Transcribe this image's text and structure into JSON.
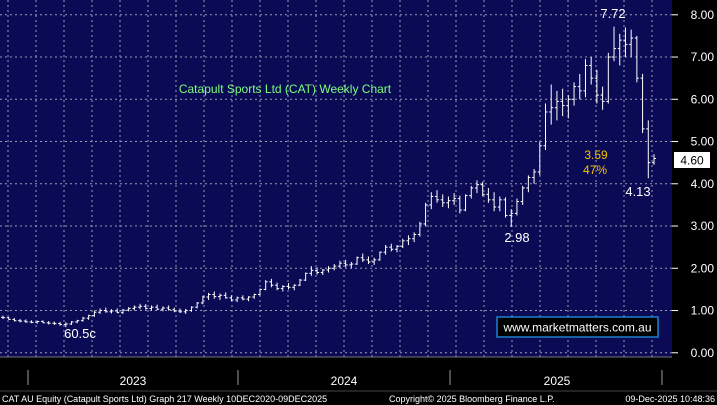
{
  "chart_data": {
    "type": "line",
    "style": "weekly bar (OHLC) chart",
    "title": "Catapult Sports Ltd (CAT) Weekly Chart",
    "xlabel": "",
    "ylabel": "",
    "ylim": [
      -0.1,
      8.35
    ],
    "yticks": [
      "0.00",
      "1.00",
      "2.00",
      "3.00",
      "4.00",
      "5.00",
      "6.00",
      "7.00",
      "8.00"
    ],
    "xticks": [
      "2023",
      "2024",
      "2025"
    ],
    "grid": true,
    "last_price": "4.60",
    "last_price_value": 4.6,
    "website": "www.marketmatters.com.au",
    "annotations": {
      "low_2022": {
        "text": "60.5c",
        "week": 11,
        "value": 0.605
      },
      "low_2024": {
        "text": "2.98",
        "week": 89,
        "value": 2.98
      },
      "high_2025": {
        "text": "7.72",
        "week": 106,
        "value": 7.72
      },
      "low_2025": {
        "text": "4.13",
        "week": 112,
        "value": 4.13
      },
      "bounce_price": {
        "text": "3.59",
        "color": "#f5c400"
      },
      "bounce_pct": {
        "text": "47%",
        "color": "#f5c400"
      }
    },
    "series": [
      {
        "week_start": 0,
        "bars": [
          [
            0.84,
            0.88,
            0.8,
            0.83
          ],
          [
            0.83,
            0.85,
            0.78,
            0.79
          ],
          [
            0.79,
            0.82,
            0.74,
            0.76
          ],
          [
            0.76,
            0.8,
            0.72,
            0.75
          ],
          [
            0.75,
            0.79,
            0.71,
            0.73
          ],
          [
            0.73,
            0.77,
            0.7,
            0.72
          ],
          [
            0.72,
            0.76,
            0.69,
            0.74
          ],
          [
            0.74,
            0.77,
            0.7,
            0.71
          ],
          [
            0.71,
            0.75,
            0.67,
            0.7
          ],
          [
            0.7,
            0.74,
            0.66,
            0.69
          ],
          [
            0.69,
            0.73,
            0.64,
            0.67
          ],
          [
            0.67,
            0.72,
            0.605,
            0.68
          ],
          [
            0.68,
            0.75,
            0.66,
            0.73
          ],
          [
            0.73,
            0.78,
            0.7,
            0.76
          ],
          [
            0.76,
            0.85,
            0.74,
            0.82
          ],
          [
            0.82,
            0.9,
            0.78,
            0.88
          ],
          [
            0.88,
            1.0,
            0.85,
            0.96
          ],
          [
            0.96,
            1.05,
            0.92,
            1.0
          ],
          [
            1.0,
            1.07,
            0.95,
            0.97
          ],
          [
            0.97,
            1.03,
            0.93,
            0.99
          ],
          [
            0.99,
            1.05,
            0.94,
            0.95
          ],
          [
            0.95,
            1.04,
            0.92,
            1.01
          ],
          [
            1.01,
            1.08,
            0.98,
            1.05
          ],
          [
            1.05,
            1.12,
            1.0,
            1.08
          ],
          [
            1.08,
            1.16,
            1.03,
            1.1
          ],
          [
            1.1,
            1.15,
            1.02,
            1.05
          ],
          [
            1.05,
            1.12,
            1.0,
            1.08
          ],
          [
            1.08,
            1.14,
            1.01,
            1.03
          ],
          [
            1.03,
            1.1,
            0.98,
            1.06
          ],
          [
            1.06,
            1.12,
            1.0,
            1.02
          ],
          [
            1.02,
            1.07,
            0.96,
            0.99
          ],
          [
            0.99,
            1.05,
            0.94,
            0.97
          ],
          [
            0.97,
            1.04,
            0.92,
            1.0
          ],
          [
            1.0,
            1.1,
            0.97,
            1.08
          ],
          [
            1.08,
            1.2,
            1.05,
            1.18
          ],
          [
            1.18,
            1.35,
            1.15,
            1.32
          ],
          [
            1.32,
            1.42,
            1.25,
            1.38
          ],
          [
            1.38,
            1.45,
            1.28,
            1.33
          ],
          [
            1.33,
            1.4,
            1.25,
            1.36
          ],
          [
            1.36,
            1.43,
            1.28,
            1.3
          ],
          [
            1.3,
            1.36,
            1.22,
            1.25
          ],
          [
            1.25,
            1.33,
            1.2,
            1.3
          ],
          [
            1.3,
            1.36,
            1.24,
            1.27
          ],
          [
            1.27,
            1.34,
            1.22,
            1.32
          ],
          [
            1.32,
            1.4,
            1.28,
            1.38
          ],
          [
            1.38,
            1.52,
            1.35,
            1.5
          ],
          [
            1.5,
            1.72,
            1.48,
            1.68
          ],
          [
            1.68,
            1.75,
            1.55,
            1.6
          ],
          [
            1.6,
            1.66,
            1.48,
            1.52
          ],
          [
            1.52,
            1.6,
            1.45,
            1.57
          ],
          [
            1.57,
            1.65,
            1.5,
            1.55
          ],
          [
            1.55,
            1.62,
            1.48,
            1.6
          ],
          [
            1.6,
            1.75,
            1.58,
            1.72
          ],
          [
            1.72,
            1.9,
            1.7,
            1.88
          ],
          [
            1.88,
            2.05,
            1.82,
            1.95
          ],
          [
            1.95,
            2.02,
            1.85,
            1.9
          ],
          [
            1.9,
            1.98,
            1.84,
            1.96
          ],
          [
            1.96,
            2.05,
            1.9,
            2.0
          ],
          [
            2.0,
            2.1,
            1.95,
            2.05
          ],
          [
            2.05,
            2.18,
            2.0,
            2.12
          ],
          [
            2.12,
            2.2,
            2.02,
            2.08
          ],
          [
            2.08,
            2.15,
            2.0,
            2.1
          ],
          [
            2.1,
            2.28,
            2.08,
            2.25
          ],
          [
            2.25,
            2.35,
            2.15,
            2.2
          ],
          [
            2.2,
            2.28,
            2.1,
            2.15
          ],
          [
            2.15,
            2.25,
            2.08,
            2.2
          ],
          [
            2.2,
            2.4,
            2.18,
            2.38
          ],
          [
            2.38,
            2.55,
            2.32,
            2.5
          ],
          [
            2.5,
            2.58,
            2.4,
            2.45
          ],
          [
            2.45,
            2.55,
            2.38,
            2.52
          ],
          [
            2.52,
            2.7,
            2.48,
            2.65
          ],
          [
            2.65,
            2.78,
            2.55,
            2.7
          ],
          [
            2.7,
            2.85,
            2.62,
            2.8
          ],
          [
            2.8,
            3.1,
            2.75,
            3.05
          ],
          [
            3.05,
            3.55,
            3.0,
            3.5
          ],
          [
            3.5,
            3.8,
            3.4,
            3.7
          ],
          [
            3.7,
            3.85,
            3.55,
            3.62
          ],
          [
            3.62,
            3.75,
            3.45,
            3.55
          ],
          [
            3.55,
            3.7,
            3.42,
            3.6
          ],
          [
            3.6,
            3.78,
            3.5,
            3.65
          ],
          [
            3.65,
            3.72,
            3.3,
            3.38
          ],
          [
            3.38,
            3.75,
            3.35,
            3.72
          ],
          [
            3.72,
            3.95,
            3.65,
            3.9
          ],
          [
            3.9,
            4.08,
            3.78,
            3.98
          ],
          [
            3.98,
            4.05,
            3.7,
            3.75
          ],
          [
            3.75,
            3.9,
            3.55,
            3.62
          ],
          [
            3.62,
            3.8,
            3.35,
            3.45
          ],
          [
            3.45,
            3.7,
            3.35,
            3.62
          ],
          [
            3.62,
            3.68,
            3.2,
            3.25
          ],
          [
            3.25,
            3.4,
            2.98,
            3.3
          ],
          [
            3.3,
            3.65,
            3.25,
            3.58
          ],
          [
            3.58,
            3.95,
            3.5,
            3.9
          ],
          [
            3.9,
            4.2,
            3.8,
            4.15
          ],
          [
            4.15,
            4.35,
            4.0,
            4.28
          ],
          [
            4.28,
            5.0,
            4.2,
            4.9
          ],
          [
            4.9,
            5.9,
            4.8,
            5.7
          ],
          [
            5.7,
            6.35,
            5.4,
            5.8
          ],
          [
            5.8,
            6.2,
            5.5,
            5.95
          ],
          [
            5.95,
            6.25,
            5.6,
            5.85
          ],
          [
            5.85,
            6.1,
            5.55,
            6.0
          ],
          [
            6.0,
            6.4,
            5.85,
            6.3
          ],
          [
            6.3,
            6.6,
            6.0,
            6.2
          ],
          [
            6.2,
            6.95,
            6.05,
            6.8
          ],
          [
            6.8,
            7.0,
            6.35,
            6.5
          ],
          [
            6.5,
            6.7,
            5.9,
            6.1
          ],
          [
            6.1,
            6.3,
            5.75,
            5.95
          ],
          [
            5.95,
            7.1,
            5.9,
            7.0
          ],
          [
            7.0,
            7.72,
            6.9,
            7.2
          ],
          [
            7.2,
            7.55,
            6.8,
            7.4
          ],
          [
            7.4,
            7.7,
            7.0,
            7.3
          ],
          [
            7.3,
            7.65,
            7.0,
            7.45
          ],
          [
            7.45,
            7.5,
            6.4,
            6.5
          ],
          [
            6.5,
            6.6,
            5.2,
            5.3
          ],
          [
            5.3,
            5.5,
            4.13,
            4.5
          ],
          [
            4.5,
            4.7,
            4.45,
            4.6
          ]
        ]
      }
    ]
  },
  "footer": {
    "left": "CAT AU Equity (Catapult Sports Ltd) Graph 217 Weekly 10DEC2020-09DEC2025",
    "center": "Copyright© 2025 Bloomberg Finance L.P.",
    "right": "09-Dec-2025 10:48:36"
  },
  "colors": {
    "background": "#000000",
    "plot_background": "#0a0a55",
    "grid": "#9a9ab4",
    "price_bars": "#ffffff",
    "title": "#7cff7c",
    "highlight": "#f5c400",
    "website_box": "#1f7fd0"
  }
}
